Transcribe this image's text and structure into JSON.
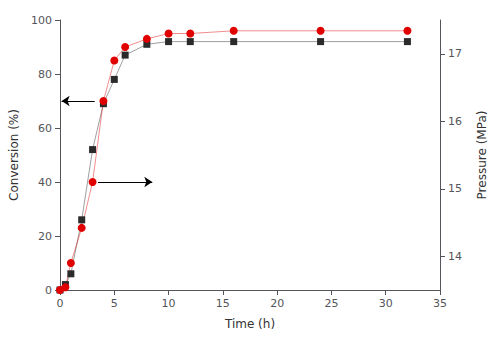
{
  "chart_data": {
    "type": "line",
    "xlabel": "Time (h)",
    "ylabel": "Conversion (%)",
    "y2label": "Pressure (MPa)",
    "x": [
      0,
      0.5,
      1,
      2,
      3,
      4,
      5,
      6,
      8,
      10,
      12,
      16,
      24,
      32
    ],
    "series": [
      {
        "values": [
          0,
          2,
          6,
          26,
          52,
          69,
          78,
          87,
          91,
          92,
          92,
          92,
          92,
          92
        ],
        "color": "#2b2b2b",
        "marker": "square"
      },
      {
        "values": [
          0,
          1,
          10,
          23,
          40,
          70,
          85,
          90,
          93,
          95,
          95,
          96,
          96,
          96
        ],
        "color": "#e00000",
        "marker": "circle"
      }
    ],
    "xlim": [
      0,
      35
    ],
    "xticks": [
      0,
      5,
      10,
      15,
      20,
      25,
      30,
      35
    ],
    "ylim": [
      0,
      100
    ],
    "yticks": [
      0,
      20,
      40,
      60,
      80,
      100
    ],
    "y2lim": [
      13.5,
      17.5
    ],
    "y2ticks": [
      14,
      15,
      16,
      17
    ],
    "grid": false,
    "annotations": [
      {
        "type": "arrow",
        "x_start": 3.2,
        "x_end": 0.15,
        "y": 70
      },
      {
        "type": "arrow",
        "x_start": 3.5,
        "x_end": 8.5,
        "y": 40
      }
    ]
  }
}
